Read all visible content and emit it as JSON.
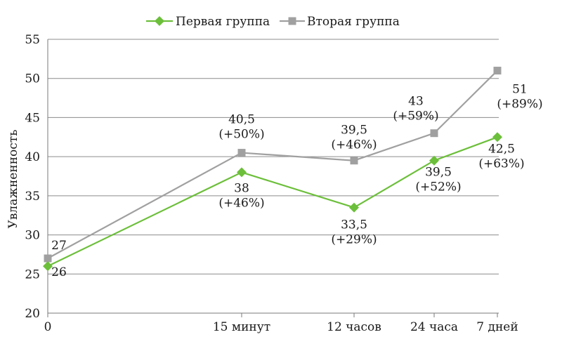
{
  "chart_data": {
    "type": "line",
    "categories": [
      "0",
      "15 минут",
      "12 часов",
      "24 часа",
      "7 дней"
    ],
    "x": [
      0,
      0.25,
      12,
      24,
      168
    ],
    "x_positions_note": "",
    "ylabel": "Увлажненность",
    "xlabel": "",
    "ylim": [
      20,
      55
    ],
    "yticks": [
      20,
      25,
      30,
      35,
      40,
      45,
      50,
      55
    ],
    "grid": true,
    "legend_position": "top",
    "series": [
      {
        "name": "Первая группа",
        "color": "#6cbf3a",
        "marker": "diamond",
        "values": [
          26,
          38,
          33.5,
          39.5,
          42.5
        ],
        "labels": [
          [
            "26"
          ],
          [
            "38",
            "(+46%)"
          ],
          [
            "33,5",
            "(+29%)"
          ],
          [
            "39,5",
            "(+52%)"
          ],
          [
            "42,5",
            "(+63%)"
          ]
        ]
      },
      {
        "name": "Вторая группа",
        "color": "#a0a0a0",
        "marker": "square",
        "values": [
          27,
          40.5,
          39.5,
          43,
          51
        ],
        "labels": [
          [
            "27"
          ],
          [
            "40,5",
            "(+50%)"
          ],
          [
            "39,5",
            "(+46%)"
          ],
          [
            "43",
            "(+59%)"
          ],
          [
            "51",
            "(+89%)"
          ]
        ]
      }
    ]
  }
}
